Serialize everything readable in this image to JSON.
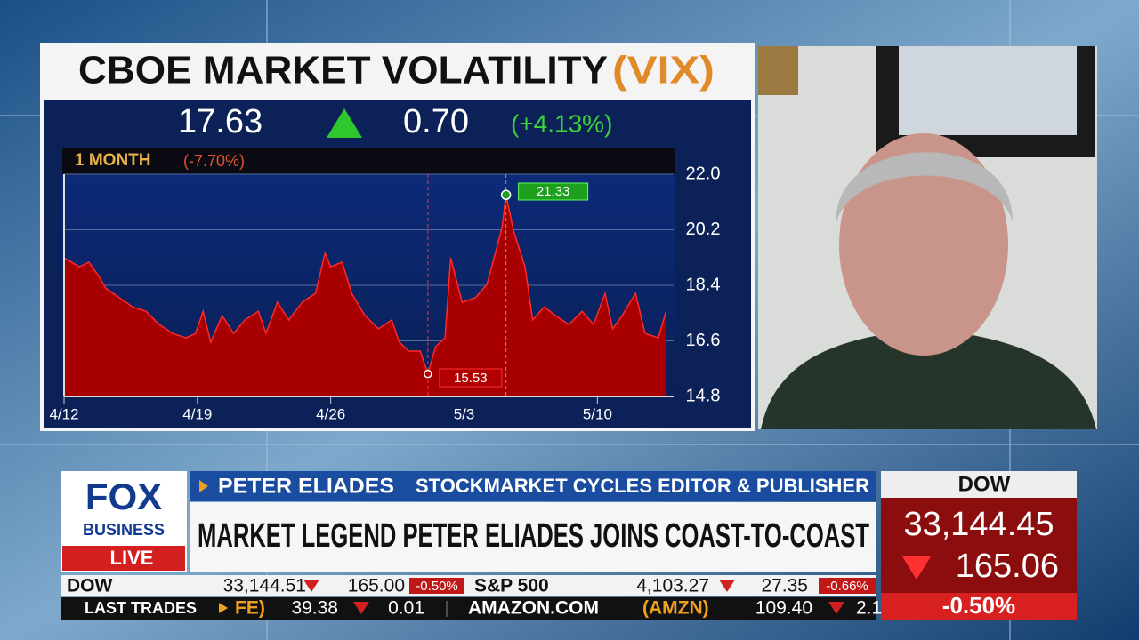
{
  "chart_data": {
    "type": "area",
    "title": "CBOE MARKET VOLATILITY",
    "symbol": "(VIX)",
    "period": "1 MONTH",
    "period_change": "(-7.70%)",
    "color": "#a80000",
    "line_color": "#ff2a2a",
    "grid": true,
    "x": [
      0,
      0.4,
      0.8,
      1.3,
      1.8,
      2.2,
      2.9,
      3.6,
      4.3,
      5.0,
      5.7,
      6.4,
      6.9,
      7.3,
      7.7,
      8.3,
      8.9,
      9.5,
      10.2,
      10.6,
      11.2,
      11.8,
      12.5,
      13.2,
      13.7,
      14.0,
      14.6,
      15.1,
      15.8,
      16.5,
      17.2,
      17.6,
      18.1,
      18.7,
      19.1,
      19.5,
      20.0,
      20.3,
      20.9,
      21.6,
      22.2,
      22.7,
      23.0,
      23.2,
      23.6,
      24.2,
      24.6,
      25.2,
      25.8,
      26.5,
      27.2,
      27.8,
      28.4,
      28.8,
      29.3,
      30.0,
      30.5,
      31.2,
      31.6
    ],
    "values": [
      19.29,
      19.15,
      19.0,
      19.15,
      18.72,
      18.3,
      18.0,
      17.7,
      17.56,
      17.13,
      16.84,
      16.7,
      16.84,
      17.56,
      16.56,
      17.42,
      16.84,
      17.28,
      17.56,
      16.84,
      17.85,
      17.28,
      17.85,
      18.14,
      19.44,
      19.0,
      19.15,
      18.14,
      17.42,
      16.99,
      17.28,
      16.56,
      16.27,
      16.27,
      15.53,
      16.41,
      16.7,
      19.29,
      17.85,
      18.0,
      18.43,
      19.58,
      20.3,
      21.33,
      20.16,
      19.0,
      17.28,
      17.7,
      17.42,
      17.13,
      17.56,
      17.13,
      18.14,
      16.99,
      17.42,
      18.14,
      16.84,
      16.7,
      17.56
    ],
    "xlim": [
      0,
      32
    ],
    "ylim": [
      14.8,
      22.0
    ],
    "xticks": [
      {
        "value": 0,
        "label": "4/12"
      },
      {
        "value": 7,
        "label": "4/19"
      },
      {
        "value": 14,
        "label": "4/26"
      },
      {
        "value": 21,
        "label": "5/3"
      },
      {
        "value": 28,
        "label": "5/10"
      }
    ],
    "yticks": [
      {
        "value": 22.0,
        "label": "22.0"
      },
      20.2,
      18.4,
      16.6,
      14.8
    ]
  },
  "quote": {
    "last": "17.63",
    "change": "0.70",
    "percent": "(+4.13%)"
  },
  "lower_third": {
    "logo": "FOX",
    "logo_sub": "BUSINESS",
    "live": "LIVE",
    "name": "PETER ELIADES",
    "role": "STOCKMARKET CYCLES EDITOR & PUBLISHER",
    "headline": "MARKET LEGEND PETER ELIADES JOINS COAST-TO-COAST"
  },
  "dow_box": {
    "label": "DOW",
    "value": "33,144.45",
    "change": "165.06",
    "percent": "-0.50%"
  },
  "ticker": {
    "row1": [
      "DOW",
      "33,144.51",
      "165.00",
      "-0.50%",
      "S&P 500",
      "4,103.27",
      "27.35",
      "-0.66%"
    ],
    "label": "LAST TRADES",
    "row2": [
      "FE)",
      "39.38",
      "0.01",
      "AMAZON.COM",
      "(AMZN)",
      "109.40",
      "2.1"
    ]
  }
}
